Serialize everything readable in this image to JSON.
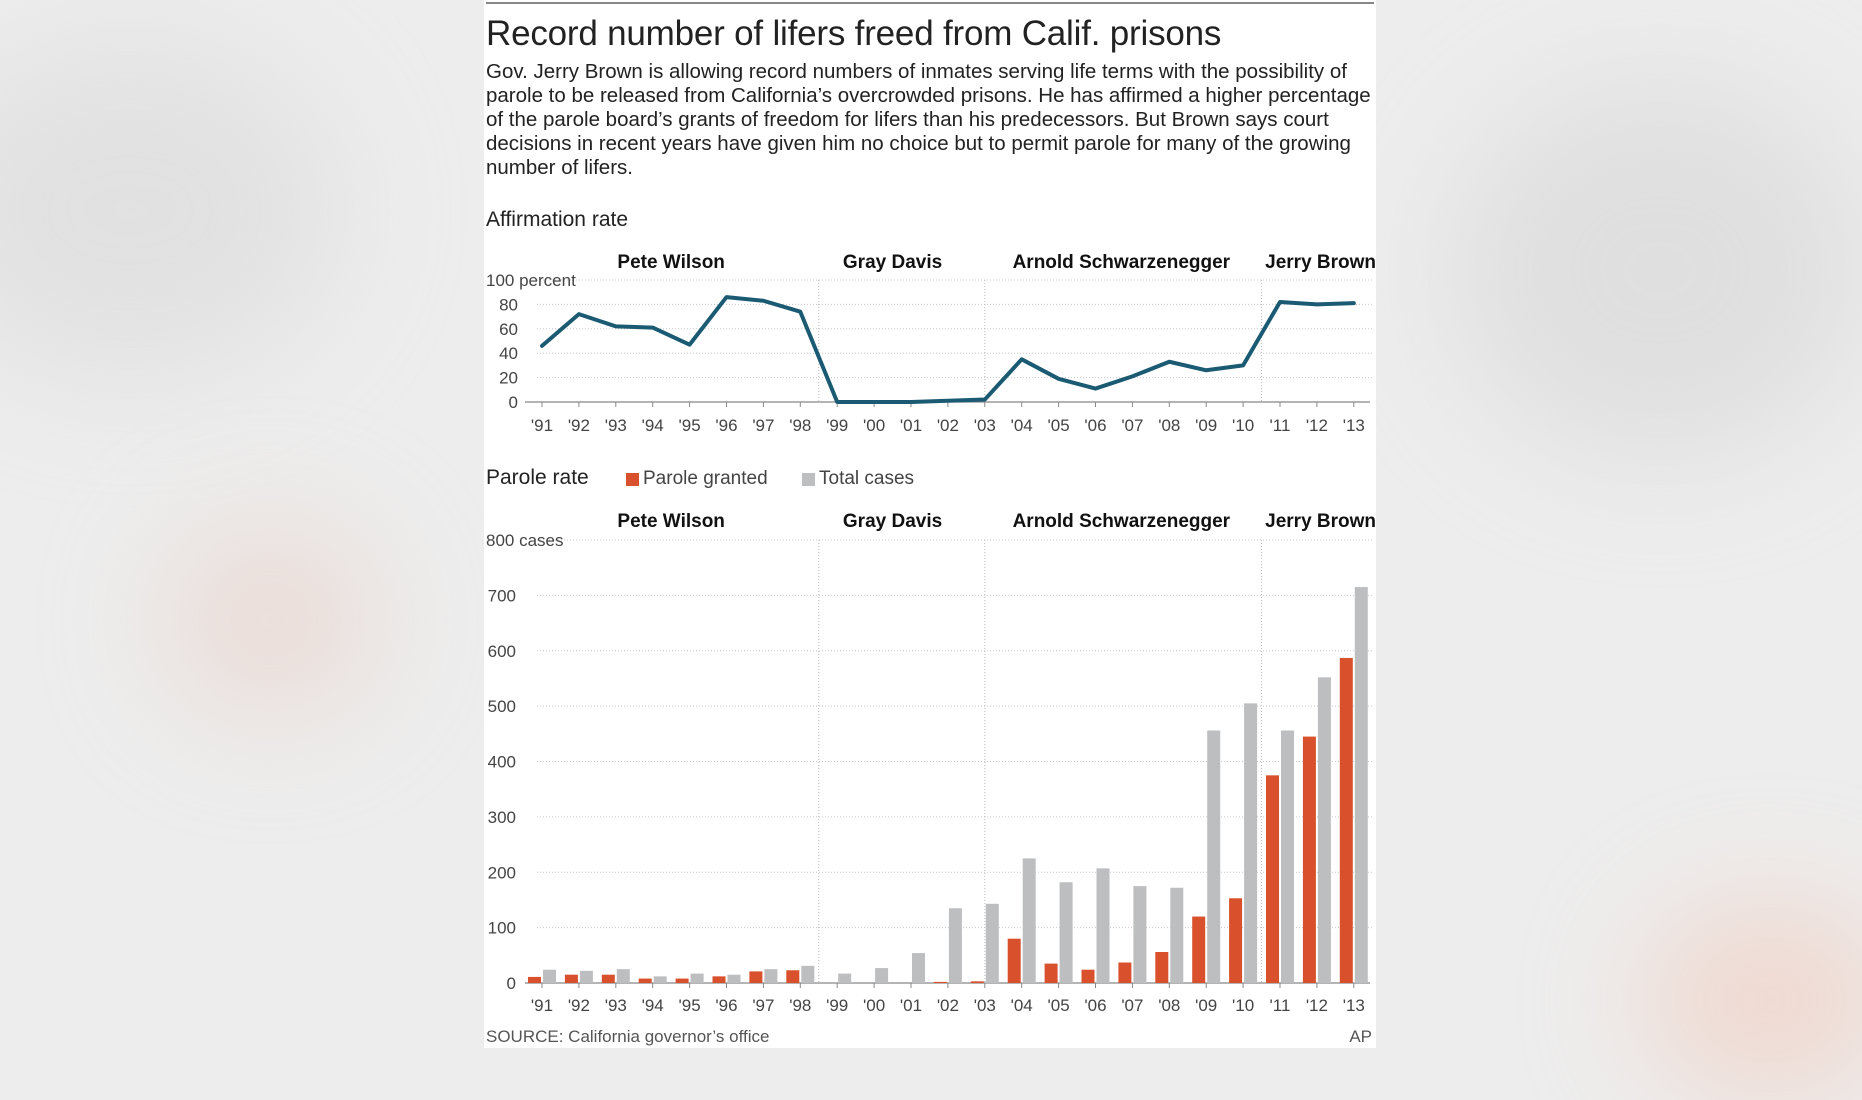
{
  "title": "Record number of lifers freed from Calif. prisons",
  "intro": "Gov. Jerry Brown is allowing record numbers of inmates serving life terms with the possibility of parole to be released from California’s overcrowded prisons. He has affirmed a higher percentage of the parole board’s grants of freedom for lifers than his predecessors. But Brown says court decisions in recent years have given him no choice but to permit parole for many of the growing number of lifers.",
  "source": "SOURCE: California governor’s office",
  "credit": "AP",
  "colors": {
    "line": "#1b5a73",
    "granted": "#d9512c",
    "total": "#bdbec0",
    "grid": "#c8c8c8",
    "divider": "#bbbbbb"
  },
  "governors": [
    {
      "name": "Pete Wilson",
      "start_year": "'91",
      "end_year": "'98"
    },
    {
      "name": "Gray Davis",
      "start_year": "'99",
      "end_year": "'03"
    },
    {
      "name": "Arnold Schwarzenegger",
      "start_year": "'03",
      "end_year": "'10"
    },
    {
      "name": "Jerry Brown",
      "start_year": "'11",
      "end_year": "'13"
    }
  ],
  "chart_data": [
    {
      "type": "line",
      "title": "Affirmation rate",
      "ylabel": "100 percent",
      "ylim": [
        0,
        100
      ],
      "yticks": [
        "0",
        "20",
        "40",
        "60",
        "80",
        "100 percent"
      ],
      "categories": [
        "'91",
        "'92",
        "'93",
        "'94",
        "'95",
        "'96",
        "'97",
        "'98",
        "'99",
        "'00",
        "'01",
        "'02",
        "'03",
        "'04",
        "'05",
        "'06",
        "'07",
        "'08",
        "'09",
        "'10",
        "'11",
        "'12",
        "'13"
      ],
      "series": [
        {
          "name": "Affirmation rate",
          "values": [
            46,
            72,
            62,
            61,
            47,
            86,
            83,
            74,
            0,
            0,
            0,
            1,
            2,
            35,
            19,
            11,
            21,
            33,
            26,
            30,
            82,
            80,
            81
          ]
        }
      ]
    },
    {
      "type": "bar",
      "title": "Parole rate",
      "ylabel": "800 cases",
      "ylim": [
        0,
        800
      ],
      "yticks": [
        "0",
        "100",
        "200",
        "300",
        "400",
        "500",
        "600",
        "700",
        "800 cases"
      ],
      "categories": [
        "'91",
        "'92",
        "'93",
        "'94",
        "'95",
        "'96",
        "'97",
        "'98",
        "'99",
        "'00",
        "'01",
        "'02",
        "'03",
        "'04",
        "'05",
        "'06",
        "'07",
        "'08",
        "'09",
        "'10",
        "'11",
        "'12",
        "'13"
      ],
      "series": [
        {
          "name": "Parole granted",
          "values": [
            11,
            15,
            15,
            8,
            8,
            12,
            21,
            23,
            0,
            0,
            0,
            2,
            3,
            80,
            35,
            24,
            37,
            56,
            120,
            153,
            375,
            445,
            587
          ]
        },
        {
          "name": "Total cases",
          "values": [
            24,
            22,
            25,
            12,
            17,
            15,
            25,
            31,
            17,
            27,
            54,
            135,
            143,
            225,
            182,
            207,
            175,
            172,
            456,
            505,
            456,
            552,
            715
          ]
        }
      ]
    }
  ]
}
